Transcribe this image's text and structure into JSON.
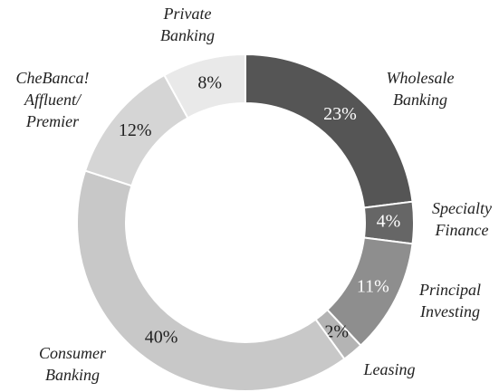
{
  "chart_data": {
    "type": "donut",
    "categories": [
      [
        "Wholesale",
        "Banking"
      ],
      [
        "Specialty",
        "Finance"
      ],
      [
        "Principal",
        "Investing"
      ],
      [
        "Leasing"
      ],
      [
        "Consumer",
        "Banking"
      ],
      [
        "CheBanca!",
        "Affluent/",
        "Premier"
      ],
      [
        "Private",
        "Banking"
      ]
    ],
    "values": [
      23,
      4,
      11,
      2,
      40,
      12,
      8
    ],
    "value_labels": [
      "23%",
      "4%",
      "11%",
      "2%",
      "40%",
      "12%",
      "8%"
    ],
    "colors": [
      "#555555",
      "#666666",
      "#8e8e8e",
      "#b4b4b4",
      "#c8c8c8",
      "#d5d5d5",
      "#e9e9e9"
    ]
  }
}
